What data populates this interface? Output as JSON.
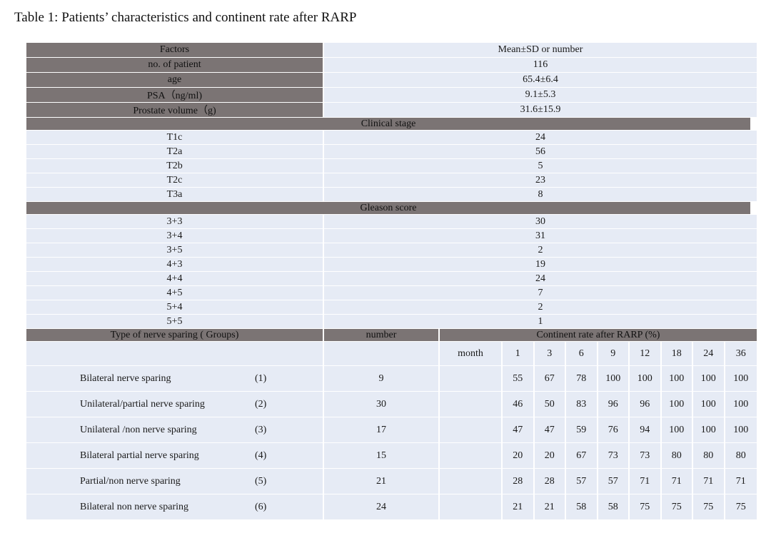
{
  "caption": "Table 1: Patients’ characteristics and continent rate after RARP",
  "header": {
    "factors": "Factors",
    "value": "Mean±SD or number"
  },
  "basic_rows": [
    {
      "label": "no. of patient",
      "value": "116"
    },
    {
      "label": "age",
      "value": "65.4±6.4"
    },
    {
      "label": "PSA（ng/ml)",
      "value": "9.1±5.3"
    },
    {
      "label": "Prostate volume（g)",
      "value": "31.6±15.9"
    }
  ],
  "clinical_stage": {
    "title": "Clinical  stage",
    "rows": [
      {
        "label": "T1c",
        "value": "24"
      },
      {
        "label": "T2a",
        "value": "56"
      },
      {
        "label": "T2b",
        "value": "5"
      },
      {
        "label": "T2c",
        "value": "23"
      },
      {
        "label": "T3a",
        "value": "8"
      }
    ]
  },
  "gleason": {
    "title": "Gleason   score",
    "rows": [
      {
        "label": "3+3",
        "value": "30"
      },
      {
        "label": "3+4",
        "value": "31"
      },
      {
        "label": "3+5",
        "value": "2"
      },
      {
        "label": "4+3",
        "value": "19"
      },
      {
        "label": "4+4",
        "value": "24"
      },
      {
        "label": "4+5",
        "value": "7"
      },
      {
        "label": "5+4",
        "value": "2"
      },
      {
        "label": "5+5",
        "value": "1"
      }
    ]
  },
  "nerve": {
    "type_header": "Type of nerve sparing ( Groups)",
    "number_header": "number",
    "rate_header": "Continent rate after RARP (%)",
    "month_label": "month",
    "months": [
      "1",
      "3",
      "6",
      "9",
      "12",
      "18",
      "24",
      "36"
    ],
    "groups": [
      {
        "label": "Bilateral nerve sparing",
        "index": "(1)",
        "number": "9",
        "rates": [
          "55",
          "67",
          "78",
          "100",
          "100",
          "100",
          "100",
          "100"
        ]
      },
      {
        "label": "Unilateral/partial nerve sparing",
        "index": "(2)",
        "number": "30",
        "rates": [
          "46",
          "50",
          "83",
          "96",
          "96",
          "100",
          "100",
          "100"
        ]
      },
      {
        "label": "Unilateral /non nerve sparing",
        "index": "(3)",
        "number": "17",
        "rates": [
          "47",
          "47",
          "59",
          "76",
          "94",
          "100",
          "100",
          "100"
        ]
      },
      {
        "label": "Bilateral partial nerve sparing",
        "index": "(4)",
        "number": "15",
        "rates": [
          "20",
          "20",
          "67",
          "73",
          "73",
          "80",
          "80",
          "80"
        ]
      },
      {
        "label": "Partial/non nerve sparing",
        "index": "(5)",
        "number": "21",
        "rates": [
          "28",
          "28",
          "57",
          "57",
          "71",
          "71",
          "71",
          "71"
        ]
      },
      {
        "label": "Bilateral non nerve sparing",
        "index": "(6)",
        "number": "24",
        "rates": [
          "21",
          "21",
          "58",
          "58",
          "75",
          "75",
          "75",
          "75"
        ]
      }
    ]
  },
  "colors": {
    "header_bg": "#7b7474",
    "row_bg": "#e6ebf5"
  }
}
